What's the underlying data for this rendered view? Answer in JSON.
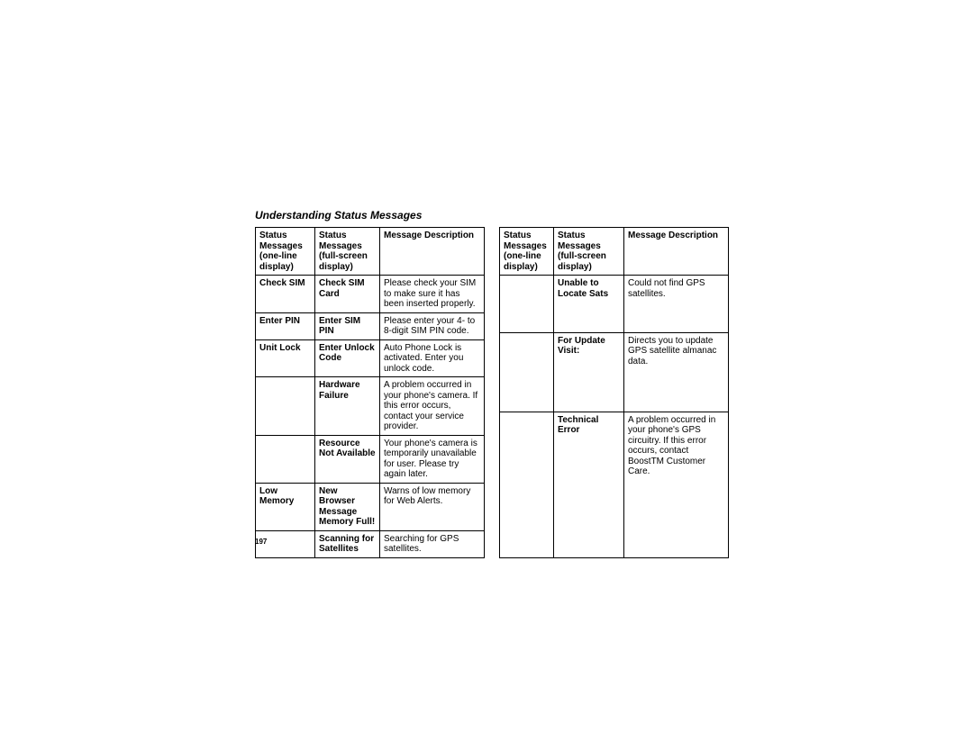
{
  "title": "Understanding Status Messages",
  "page_number": "197",
  "headers": {
    "col1": "Status Messages (one-line display)",
    "col2": "Status Messages (full-screen display)",
    "col3": "Message Description"
  },
  "table1": {
    "rows": [
      {
        "a": "Check SIM",
        "b": "Check SIM Card",
        "c": "Please check your SIM to make sure it has been inserted properly."
      },
      {
        "a": "Enter PIN",
        "b": "Enter SIM PIN",
        "c": "Please enter your 4- to 8-digit SIM PIN code."
      },
      {
        "a": "Unit Lock",
        "b": "Enter Unlock Code",
        "c": "Auto Phone Lock is activated. Enter you unlock code."
      },
      {
        "a": "",
        "b": "Hardware Failure",
        "c": "A problem occurred in your phone's camera. If this error occurs, contact your service provider."
      },
      {
        "a": "",
        "b": "Resource Not Available",
        "c": "Your phone's camera is temporarily unavailable for user. Please try again later."
      },
      {
        "a": "Low Memory",
        "b": "New Browser Message Memory Full!",
        "c": "Warns of low memory for Web Alerts."
      },
      {
        "a": "",
        "b": "Scanning for Satellites",
        "c": "Searching for GPS satellites."
      }
    ]
  },
  "table2": {
    "rows": [
      {
        "a": "",
        "b": "Unable to Locate Sats",
        "c": "Could not find GPS satellites."
      },
      {
        "a": "",
        "b": "For Update Visit:",
        "c": "Directs you to update GPS satellite almanac data."
      },
      {
        "a": "",
        "b": "Technical Error",
        "c": "A problem occurred in your phone's GPS circuitry. If this error occurs, contact BoostTM Customer Care."
      }
    ]
  }
}
